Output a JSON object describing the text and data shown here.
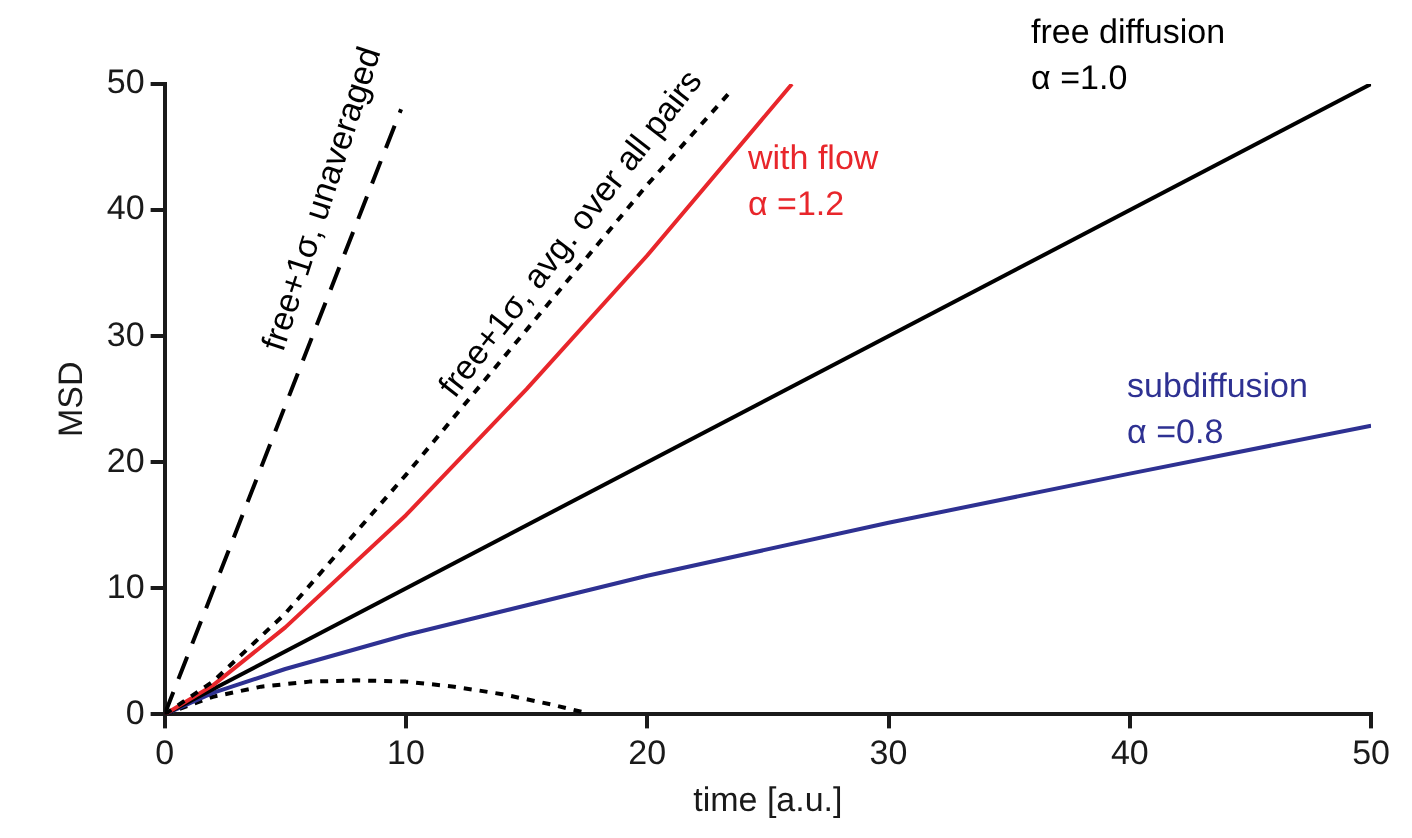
{
  "chart_data": {
    "type": "line",
    "xlabel": "time [a.u.]",
    "ylabel": "MSD",
    "xlim": [
      0,
      50
    ],
    "ylim": [
      0,
      50
    ],
    "xticks": [
      0,
      10,
      20,
      30,
      40,
      50
    ],
    "yticks": [
      0,
      10,
      20,
      30,
      40,
      50
    ],
    "grid": false,
    "legend": false,
    "marker": "none",
    "series": [
      {
        "name": "free+1σ, unaveraged",
        "color": "#000000",
        "line_style": "dashed",
        "x": [
          0,
          9.8
        ],
        "values": [
          0,
          48
        ]
      },
      {
        "name": "free+1σ, avg. over all pairs",
        "color": "#000000",
        "line_style": "dotted",
        "x": [
          0,
          2,
          5,
          10,
          15,
          20,
          23.5
        ],
        "values": [
          0,
          2.6,
          8,
          19,
          30.5,
          42,
          49.5
        ]
      },
      {
        "name": "with flow\nα =1.2",
        "color": "#e8262b",
        "line_style": "solid",
        "x": [
          0,
          2,
          5,
          10,
          15,
          20,
          26
        ],
        "values": [
          0,
          2.3,
          6.9,
          15.8,
          25.8,
          36.4,
          50
        ]
      },
      {
        "name": "free diffusion\nα =1.0",
        "color": "#000000",
        "line_style": "solid",
        "x": [
          0,
          50
        ],
        "values": [
          0,
          50
        ]
      },
      {
        "name": "subdiffusion\nα =0.8",
        "color": "#2e3192",
        "line_style": "solid",
        "x": [
          0,
          2,
          5,
          10,
          20,
          30,
          40,
          50
        ],
        "values": [
          0,
          1.7,
          3.6,
          6.3,
          11,
          15.2,
          19.1,
          22.9
        ]
      },
      {
        "color": "#000000",
        "line_style": "dotted",
        "x": [
          0,
          2,
          4,
          6,
          8,
          10,
          12,
          14,
          16,
          17.3
        ],
        "values": [
          0,
          1.4,
          2.2,
          2.6,
          2.7,
          2.6,
          2.2,
          1.6,
          0.8,
          0.2
        ]
      }
    ]
  }
}
